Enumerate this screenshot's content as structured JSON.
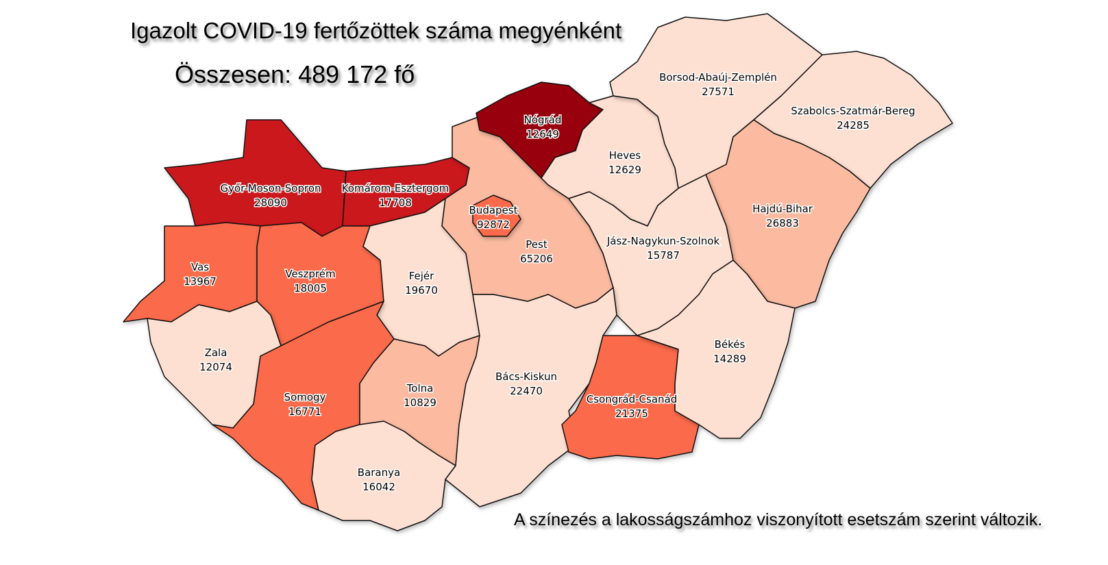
{
  "title": "Igazolt COVID-19 fertőzöttek száma megyénként",
  "total": "Összesen: 489 172 fő",
  "note": "A színezés a lakosságszámhoz viszonyított esetszám szerint változik.",
  "counties": [
    {
      "name": "Győr-Moson-Sopron",
      "cases": "28090",
      "color": "#cb181d"
    },
    {
      "name": "Komárom-Esztergom",
      "cases": "17708",
      "color": "#cb181d"
    },
    {
      "name": "Vas",
      "cases": "13967",
      "color": "#fb6a4a"
    },
    {
      "name": "Veszprém",
      "cases": "18005",
      "color": "#fb6a4a"
    },
    {
      "name": "Fejér",
      "cases": "19670",
      "color": "#fee0d2"
    },
    {
      "name": "Zala",
      "cases": "12074",
      "color": "#fee0d2"
    },
    {
      "name": "Somogy",
      "cases": "16771",
      "color": "#fb6a4a"
    },
    {
      "name": "Tolna",
      "cases": "10829",
      "color": "#fcbba1"
    },
    {
      "name": "Baranya",
      "cases": "16042",
      "color": "#fee0d2"
    },
    {
      "name": "Pest",
      "cases": "65206",
      "color": "#fcbba1"
    },
    {
      "name": "Budapest",
      "cases": "92872",
      "color": "#fb6a4a"
    },
    {
      "name": "Nógrád",
      "cases": "12649",
      "color": "#99000d"
    },
    {
      "name": "Heves",
      "cases": "12629",
      "color": "#fee0d2"
    },
    {
      "name": "Borsod-Abaúj-Zemplén",
      "cases": "27571",
      "color": "#fee0d2"
    },
    {
      "name": "Szabolcs-Szatmár-Bereg",
      "cases": "24285",
      "color": "#fee0d2"
    },
    {
      "name": "Hajdú-Bihar",
      "cases": "26883",
      "color": "#fcbba1"
    },
    {
      "name": "Jász-Nagykun-Szolnok",
      "cases": "15787",
      "color": "#fee0d2"
    },
    {
      "name": "Bács-Kiskun",
      "cases": "22470",
      "color": "#fee0d2"
    },
    {
      "name": "Csongrád-Csanád",
      "cases": "21375",
      "color": "#fb6a4a"
    },
    {
      "name": "Békés",
      "cases": "14289",
      "color": "#fee0d2"
    }
  ]
}
